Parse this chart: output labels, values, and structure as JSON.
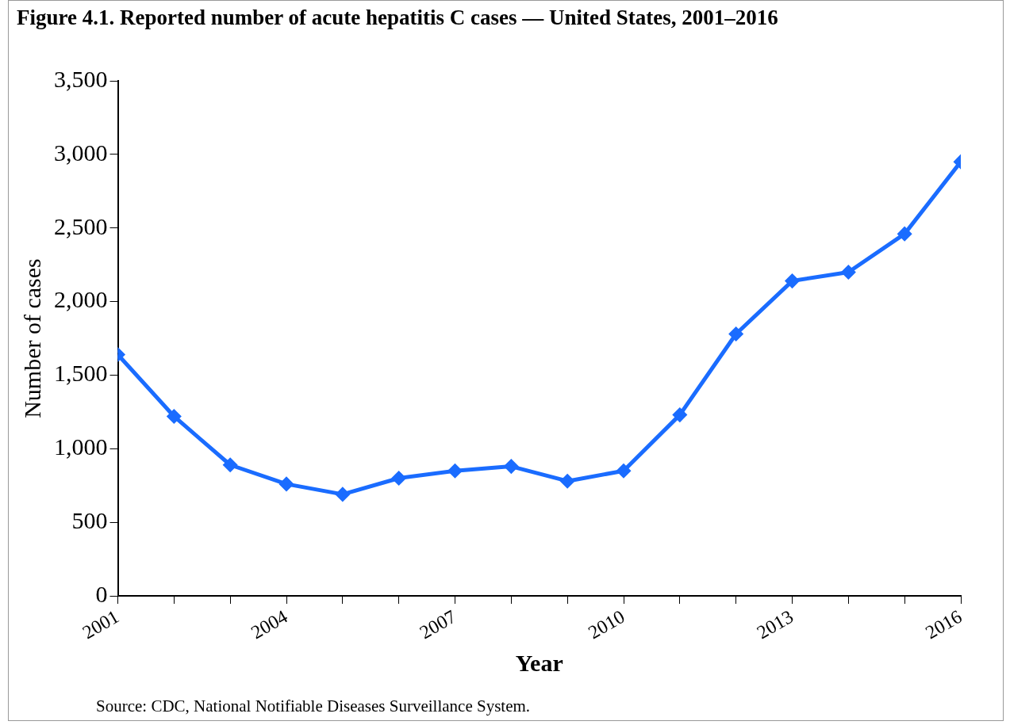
{
  "chart_data": {
    "type": "line",
    "title": "Figure 4.1. Reported number of acute hepatitis C cases — United States, 2001–2016",
    "xlabel": "Year",
    "ylabel": "Number of cases",
    "x": [
      2001,
      2002,
      2003,
      2004,
      2005,
      2006,
      2007,
      2008,
      2009,
      2010,
      2011,
      2012,
      2013,
      2014,
      2015,
      2016
    ],
    "series": [
      {
        "color": "#1a6cff",
        "values": [
          1640,
          1220,
          890,
          760,
          690,
          800,
          850,
          880,
          780,
          850,
          1230,
          1780,
          2140,
          2200,
          2460,
          2950
        ]
      }
    ],
    "xlim": [
      2001,
      2016
    ],
    "xticks": [
      2001,
      {
        "value": 2002,
        "label": null
      },
      {
        "value": 2003,
        "label": null
      },
      2004,
      {
        "value": 2005,
        "label": null
      },
      {
        "value": 2006,
        "label": null
      },
      2007,
      {
        "value": 2008,
        "label": null
      },
      {
        "value": 2009,
        "label": null
      },
      2010,
      {
        "value": 2011,
        "label": null
      },
      {
        "value": 2012,
        "label": null
      },
      2013,
      {
        "value": 2014,
        "label": null
      },
      {
        "value": 2015,
        "label": null
      },
      2016
    ],
    "ylim": [
      0,
      3500
    ],
    "yticks": [
      {
        "value": 0,
        "label": "0"
      },
      {
        "value": 500,
        "label": "500"
      },
      {
        "value": 1000,
        "label": "1,000"
      },
      {
        "value": 1500,
        "label": "1,500"
      },
      {
        "value": 2000,
        "label": "2,000"
      },
      {
        "value": 2500,
        "label": "2,500"
      },
      {
        "value": 3000,
        "label": "3,000"
      },
      {
        "value": 3500,
        "label": "3,500"
      }
    ],
    "grid": false,
    "legend": false,
    "marker": "diamond",
    "line_style": "solid",
    "annotations": [
      "Source: CDC, National Notifiable Diseases Surveillance System."
    ]
  }
}
